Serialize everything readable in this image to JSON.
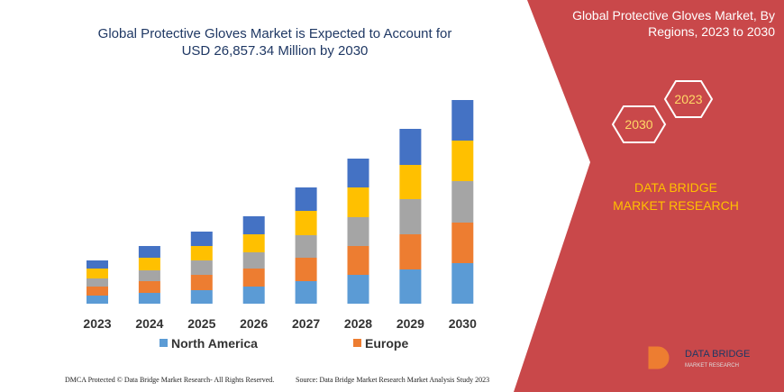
{
  "chart_data": {
    "type": "stacked-bar",
    "title": "Global Protective Gloves Market is Expected to Account for USD 26,857.34 Million by 2030",
    "categories": [
      "2023",
      "2024",
      "2025",
      "2026",
      "2027",
      "2028",
      "2029",
      "2030"
    ],
    "series": [
      {
        "name": "North America",
        "color": "#5b9bd5",
        "values": [
          9,
          12,
          15,
          19,
          25,
          32,
          38,
          45
        ]
      },
      {
        "name": "Europe",
        "color": "#ed7d31",
        "values": [
          10,
          13,
          17,
          20,
          26,
          32,
          39,
          45
        ]
      },
      {
        "color": "#a5a5a5",
        "values": [
          9,
          12,
          16,
          18,
          25,
          32,
          39,
          46
        ]
      },
      {
        "color": "#ffc000",
        "values": [
          11,
          14,
          16,
          20,
          27,
          33,
          38,
          45
        ]
      },
      {
        "color": "#4472c4",
        "values": [
          9,
          13,
          16,
          20,
          26,
          32,
          40,
          45
        ]
      }
    ]
  },
  "panel": {
    "title": "Global Protective Gloves Market, By Regions, 2023 to 2030",
    "hexagons": [
      "2023",
      "2030"
    ],
    "brand": "DATA BRIDGE MARKET RESEARCH"
  },
  "logo": {
    "name": "DATA BRIDGE",
    "tagline": "MARKET RESEARCH"
  },
  "footer": {
    "left": "DMCA Protected © Data Bridge Market Research- All Rights Reserved.",
    "right": "Source: Data Bridge Market Research Market Analysis Study 2023"
  }
}
